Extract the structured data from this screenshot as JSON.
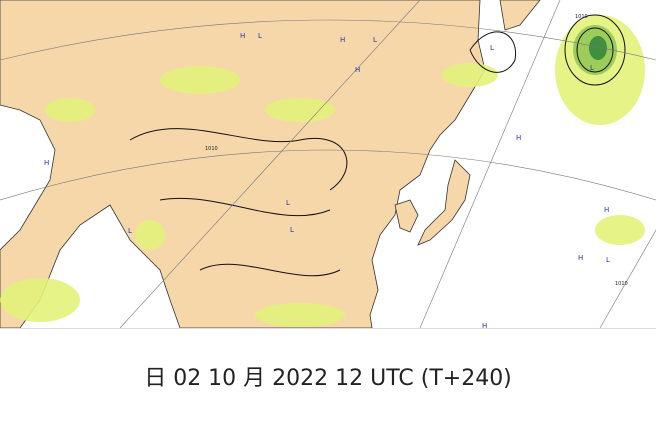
{
  "map": {
    "markers": [
      "H",
      "L",
      "H",
      "L",
      "H",
      "L",
      "H",
      "L",
      "H",
      "L",
      "H",
      "L",
      "H",
      "L",
      "H",
      "L"
    ],
    "isobars": [
      "1010",
      "1010",
      "1010"
    ]
  },
  "caption": "日 02 10 月 2022 12 UTC (T+240)"
}
